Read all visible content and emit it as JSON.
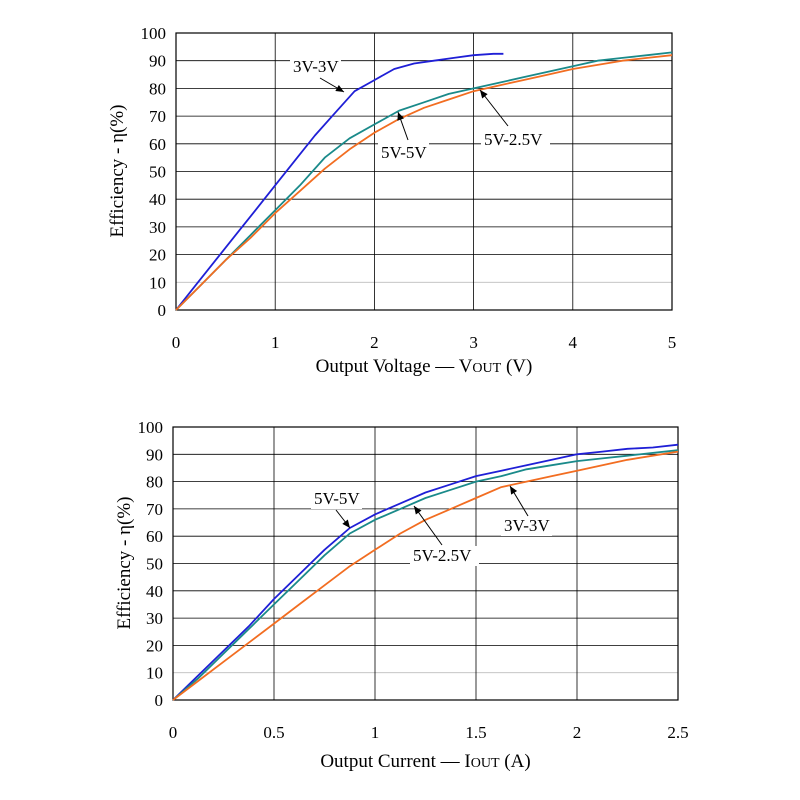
{
  "chart_data": [
    {
      "type": "line",
      "xlabel": "Output Voltage — V",
      "xlabel_sub": "OUT",
      "xlabel_unit": " (V)",
      "ylabel": "Efficiency - η(%)",
      "xlim": [
        0,
        5
      ],
      "ylim": [
        0,
        100
      ],
      "xticks": [
        "0",
        "1",
        "2",
        "3",
        "4",
        "5"
      ],
      "yticks": [
        "0",
        "10",
        "20",
        "30",
        "40",
        "50",
        "60",
        "70",
        "80",
        "90",
        "100"
      ],
      "grid": true,
      "series": [
        {
          "name": "3V-3V",
          "color": "#1f1fd6",
          "x": [
            0,
            0.2,
            0.4,
            0.6,
            0.8,
            1.0,
            1.2,
            1.4,
            1.6,
            1.8,
            2.0,
            2.2,
            2.4,
            2.6,
            2.8,
            3.0,
            3.2,
            3.3
          ],
          "y": [
            0,
            9,
            18,
            27,
            36,
            45,
            54,
            63,
            71,
            79,
            83,
            87,
            89,
            90,
            91,
            92,
            92.5,
            92.5
          ]
        },
        {
          "name": "5V-5V",
          "color": "#1a8a8a",
          "x": [
            0,
            0.25,
            0.5,
            0.75,
            1.0,
            1.25,
            1.5,
            1.75,
            2.0,
            2.25,
            2.5,
            2.75,
            3.0,
            3.25,
            3.5,
            3.75,
            4.0,
            4.25,
            4.5,
            4.75,
            5.0
          ],
          "y": [
            0,
            9,
            18,
            27,
            36,
            45,
            55,
            62,
            67,
            72,
            75,
            78,
            80,
            82,
            84,
            86,
            88,
            90,
            91,
            92,
            93
          ]
        },
        {
          "name": "5V-2.5V",
          "color": "#f26d21",
          "x": [
            0,
            0.25,
            0.5,
            0.75,
            1.0,
            1.25,
            1.5,
            1.75,
            2.0,
            2.25,
            2.5,
            2.75,
            3.0,
            3.25,
            3.5,
            3.75,
            4.0,
            4.25,
            4.5,
            4.75,
            5.0
          ],
          "y": [
            0,
            9,
            18,
            26,
            35,
            43,
            51,
            58,
            64,
            69,
            73,
            76,
            79,
            81,
            83,
            85,
            87,
            88.5,
            90,
            91,
            92
          ]
        }
      ],
      "annotations": [
        {
          "text": "3V-3V",
          "series": "3V-3V",
          "at_x": 1.7,
          "at_y": 79
        },
        {
          "text": "5V-5V",
          "series": "5V-5V",
          "at_x": 2.25,
          "at_y": 72
        },
        {
          "text": "5V-2.5V",
          "series": "5V-2.5V",
          "at_x": 3.05,
          "at_y": 80
        }
      ]
    },
    {
      "type": "line",
      "xlabel": "Output Current — I",
      "xlabel_sub": "OUT",
      "xlabel_unit": " (A)",
      "ylabel": "Efficiency - η(%)",
      "xlim": [
        0,
        2.5
      ],
      "ylim": [
        0,
        100
      ],
      "xticks": [
        "0",
        "0.5",
        "1",
        "1.5",
        "2",
        "2.5"
      ],
      "yticks": [
        "0",
        "10",
        "20",
        "30",
        "40",
        "50",
        "60",
        "70",
        "80",
        "90",
        "100"
      ],
      "grid": true,
      "series": [
        {
          "name": "5V-5V",
          "color": "#1f1fd6",
          "x": [
            0,
            0.125,
            0.25,
            0.375,
            0.5,
            0.625,
            0.75,
            0.875,
            1.0,
            1.125,
            1.25,
            1.375,
            1.5,
            1.625,
            1.75,
            1.875,
            2.0,
            2.125,
            2.25,
            2.375,
            2.5
          ],
          "y": [
            0,
            9,
            18,
            27,
            37,
            46,
            55,
            63,
            68,
            72,
            76,
            79,
            82,
            84,
            86,
            88,
            90,
            91,
            92,
            92.5,
            93.5
          ]
        },
        {
          "name": "5V-2.5V",
          "color": "#1a8a8a",
          "x": [
            0,
            0.125,
            0.25,
            0.375,
            0.5,
            0.625,
            0.75,
            0.875,
            1.0,
            1.125,
            1.25,
            1.375,
            1.5,
            1.625,
            1.75,
            1.875,
            2.0,
            2.125,
            2.25,
            2.375,
            2.5
          ],
          "y": [
            0,
            8,
            17,
            26,
            35,
            44,
            53,
            61,
            66,
            70,
            74,
            77,
            80,
            82,
            84.5,
            86,
            87.5,
            88.5,
            89.5,
            90.5,
            91.5
          ]
        },
        {
          "name": "3V-3V",
          "color": "#f26d21",
          "x": [
            0,
            0.125,
            0.25,
            0.375,
            0.5,
            0.625,
            0.75,
            0.875,
            1.0,
            1.125,
            1.25,
            1.375,
            1.5,
            1.625,
            1.75,
            1.875,
            2.0,
            2.125,
            2.25,
            2.375,
            2.5
          ],
          "y": [
            0,
            7,
            14,
            21,
            28,
            35,
            42,
            49,
            55,
            61,
            66,
            70,
            74,
            78,
            80,
            82,
            84,
            86,
            88,
            89.5,
            91
          ]
        }
      ],
      "annotations": [
        {
          "text": "5V-5V",
          "series": "5V-5V",
          "at_x": 0.87,
          "at_y": 63
        },
        {
          "text": "5V-2.5V",
          "series": "5V-2.5V",
          "at_x": 1.2,
          "at_y": 73
        },
        {
          "text": "3V-3V",
          "series": "3V-3V",
          "at_x": 1.67,
          "at_y": 79
        }
      ]
    }
  ]
}
